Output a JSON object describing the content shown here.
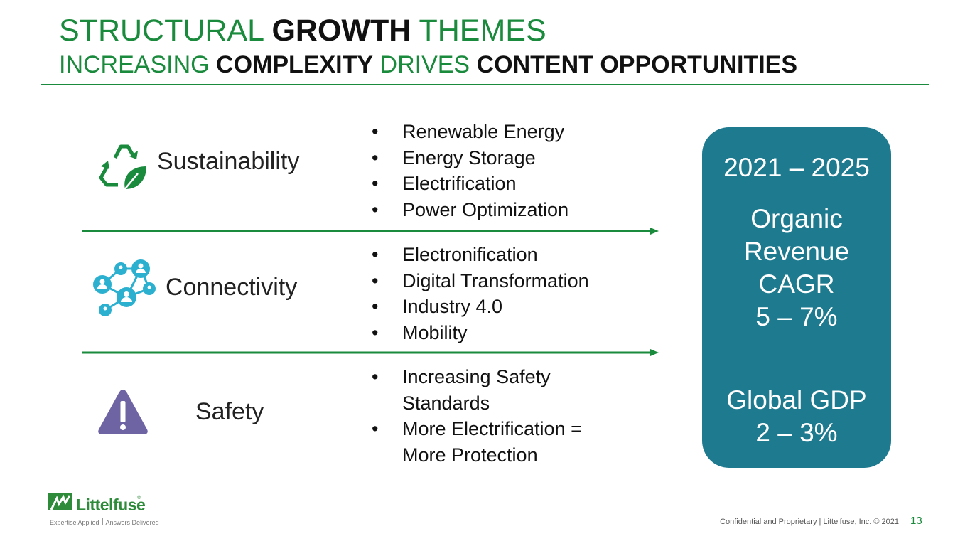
{
  "header": {
    "line1": {
      "part1": "STRUCTURAL ",
      "bold1": "GROWTH",
      "part2": " THEMES"
    },
    "line2": {
      "part1": "INCREASING ",
      "bold1": "COMPLEXITY",
      "part2": " DRIVES ",
      "bold2": "CONTENT OPPORTUNITIES"
    }
  },
  "themes": [
    {
      "label": "Sustainability",
      "icon": "recycle-leaf-icon",
      "bullets": [
        "Renewable Energy",
        "Energy Storage",
        "Electrification",
        "Power Optimization"
      ]
    },
    {
      "label": "Connectivity",
      "icon": "network-people-icon",
      "bullets": [
        "Electronification",
        "Digital Transformation",
        "Industry 4.0",
        "Mobility"
      ]
    },
    {
      "label": "Safety",
      "icon": "warning-triangle-icon",
      "bullets": [
        "Increasing Safety Standards",
        "More Electrification = More Protection"
      ]
    }
  ],
  "summary_box": {
    "period": "2021 – 2025",
    "metric_lines": [
      "Organic",
      "Revenue",
      "CAGR",
      "5 – 7%"
    ],
    "gdp_lines": [
      "Global GDP",
      "2 – 3%"
    ]
  },
  "footer": {
    "logo_text": "Littelfuse",
    "logo_mark": "®",
    "tagline_left": "Expertise Applied",
    "tagline_right": "Answers Delivered",
    "confidential": "Confidential and Proprietary | Littelfuse, Inc. © 2021",
    "page_number": "13"
  },
  "colors": {
    "accent_green": "#1a8a3c",
    "box_teal": "#1e7a8f",
    "connectivity_blue": "#2bb0d0",
    "safety_purple": "#6e64a3"
  }
}
